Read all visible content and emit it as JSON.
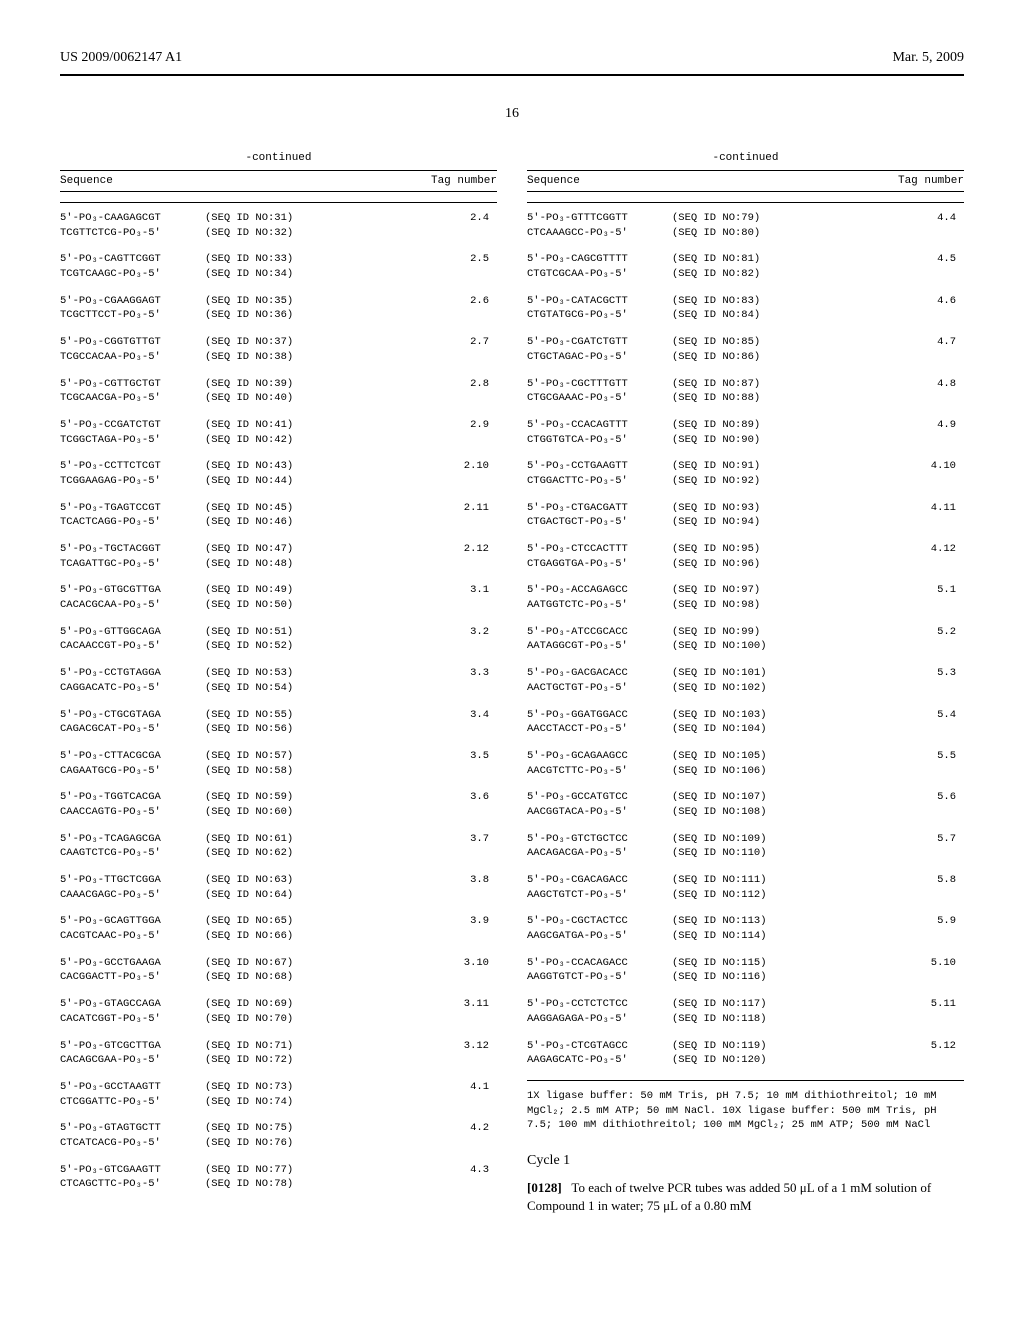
{
  "header": {
    "pub_number": "US 2009/0062147 A1",
    "pub_date": "Mar. 5, 2009"
  },
  "page_number": "16",
  "continued_label": "-continued",
  "table_header": {
    "sequence": "Sequence",
    "tag": "Tag number"
  },
  "left_sequences": [
    {
      "s1": "5'-PO₃-CAAGAGCGT",
      "id1": "(SEQ ID NO:31)",
      "tag": "2.4",
      "s2": "TCGTTCTCG-PO₃-5'",
      "id2": "(SEQ ID NO:32)"
    },
    {
      "s1": "5'-PO₃-CAGTTCGGT",
      "id1": "(SEQ ID NO:33)",
      "tag": "2.5",
      "s2": "TCGTCAAGC-PO₃-5'",
      "id2": "(SEQ ID NO:34)"
    },
    {
      "s1": "5'-PO₃-CGAAGGAGT",
      "id1": "(SEQ ID NO:35)",
      "tag": "2.6",
      "s2": "TCGCTTCCT-PO₃-5'",
      "id2": "(SEQ ID NO:36)"
    },
    {
      "s1": "5'-PO₃-CGGTGTTGT",
      "id1": "(SEQ ID NO:37)",
      "tag": "2.7",
      "s2": "TCGCCACAA-PO₃-5'",
      "id2": "(SEQ ID NO:38)"
    },
    {
      "s1": "5'-PO₃-CGTTGCTGT",
      "id1": "(SEQ ID NO:39)",
      "tag": "2.8",
      "s2": "TCGCAACGA-PO₃-5'",
      "id2": "(SEQ ID NO:40)"
    },
    {
      "s1": "5'-PO₃-CCGATCTGT",
      "id1": "(SEQ ID NO:41)",
      "tag": "2.9",
      "s2": "TCGGCTAGA-PO₃-5'",
      "id2": "(SEQ ID NO:42)"
    },
    {
      "s1": "5'-PO₃-CCTTCTCGT",
      "id1": "(SEQ ID NO:43)",
      "tag": "2.10",
      "s2": "TCGGAAGAG-PO₃-5'",
      "id2": "(SEQ ID NO:44)"
    },
    {
      "s1": "5'-PO₃-TGAGTCCGT",
      "id1": "(SEQ ID NO:45)",
      "tag": "2.11",
      "s2": "TCACTCAGG-PO₃-5'",
      "id2": "(SEQ ID NO:46)"
    },
    {
      "s1": "5'-PO₃-TGCTACGGT",
      "id1": "(SEQ ID NO:47)",
      "tag": "2.12",
      "s2": "TCAGATTGC-PO₃-5'",
      "id2": "(SEQ ID NO:48)"
    },
    {
      "s1": "5'-PO₃-GTGCGTTGA",
      "id1": "(SEQ ID NO:49)",
      "tag": "3.1",
      "s2": "CACACGCAA-PO₃-5'",
      "id2": "(SEQ ID NO:50)"
    },
    {
      "s1": "5'-PO₃-GTTGGCAGA",
      "id1": "(SEQ ID NO:51)",
      "tag": "3.2",
      "s2": "CACAACCGT-PO₃-5'",
      "id2": "(SEQ ID NO:52)"
    },
    {
      "s1": "5'-PO₃-CCTGTAGGA",
      "id1": "(SEQ ID NO:53)",
      "tag": "3.3",
      "s2": "CAGGACATC-PO₃-5'",
      "id2": "(SEQ ID NO:54)"
    },
    {
      "s1": "5'-PO₃-CTGCGTAGA",
      "id1": "(SEQ ID NO:55)",
      "tag": "3.4",
      "s2": "CAGACGCAT-PO₃-5'",
      "id2": "(SEQ ID NO:56)"
    },
    {
      "s1": "5'-PO₃-CTTACGCGA",
      "id1": "(SEQ ID NO:57)",
      "tag": "3.5",
      "s2": "CAGAATGCG-PO₃-5'",
      "id2": "(SEQ ID NO:58)"
    },
    {
      "s1": "5'-PO₃-TGGTCACGA",
      "id1": "(SEQ ID NO:59)",
      "tag": "3.6",
      "s2": "CAACCAGTG-PO₃-5'",
      "id2": "(SEQ ID NO:60)"
    },
    {
      "s1": "5'-PO₃-TCAGAGCGA",
      "id1": "(SEQ ID NO:61)",
      "tag": "3.7",
      "s2": "CAAGTCTCG-PO₃-5'",
      "id2": "(SEQ ID NO:62)"
    },
    {
      "s1": "5'-PO₃-TTGCTCGGA",
      "id1": "(SEQ ID NO:63)",
      "tag": "3.8",
      "s2": "CAAACGAGC-PO₃-5'",
      "id2": "(SEQ ID NO:64)"
    },
    {
      "s1": "5'-PO₃-GCAGTTGGA",
      "id1": "(SEQ ID NO:65)",
      "tag": "3.9",
      "s2": "CACGTCAAC-PO₃-5'",
      "id2": "(SEQ ID NO:66)"
    },
    {
      "s1": "5'-PO₃-GCCTGAAGA",
      "id1": "(SEQ ID NO:67)",
      "tag": "3.10",
      "s2": "CACGGACTT-PO₃-5'",
      "id2": "(SEQ ID NO:68)"
    },
    {
      "s1": "5'-PO₃-GTAGCCAGA",
      "id1": "(SEQ ID NO:69)",
      "tag": "3.11",
      "s2": "CACATCGGT-PO₃-5'",
      "id2": "(SEQ ID NO:70)"
    },
    {
      "s1": "5'-PO₃-GTCGCTTGA",
      "id1": "(SEQ ID NO:71)",
      "tag": "3.12",
      "s2": "CACAGCGAA-PO₃-5'",
      "id2": "(SEQ ID NO:72)"
    },
    {
      "s1": "5'-PO₃-GCCTAAGTT",
      "id1": "(SEQ ID NO:73)",
      "tag": "4.1",
      "s2": "CTCGGATTC-PO₃-5'",
      "id2": "(SEQ ID NO:74)"
    },
    {
      "s1": "5'-PO₃-GTAGTGCTT",
      "id1": "(SEQ ID NO:75)",
      "tag": "4.2",
      "s2": "CTCATCACG-PO₃-5'",
      "id2": "(SEQ ID NO:76)"
    },
    {
      "s1": "5'-PO₃-GTCGAAGTT",
      "id1": "(SEQ ID NO:77)",
      "tag": "4.3",
      "s2": "CTCAGCTTC-PO₃-5'",
      "id2": "(SEQ ID NO:78)"
    }
  ],
  "right_sequences": [
    {
      "s1": "5'-PO₃-GTTTCGGTT",
      "id1": "(SEQ ID NO:79)",
      "tag": "4.4",
      "s2": "CTCAAAGCC-PO₃-5'",
      "id2": "(SEQ ID NO:80)"
    },
    {
      "s1": "5'-PO₃-CAGCGTTTT",
      "id1": "(SEQ ID NO:81)",
      "tag": "4.5",
      "s2": "CTGTCGCAA-PO₃-5'",
      "id2": "(SEQ ID NO:82)"
    },
    {
      "s1": "5'-PO₃-CATACGCTT",
      "id1": "(SEQ ID NO:83)",
      "tag": "4.6",
      "s2": "CTGTATGCG-PO₃-5'",
      "id2": "(SEQ ID NO:84)"
    },
    {
      "s1": "5'-PO₃-CGATCTGTT",
      "id1": "(SEQ ID NO:85)",
      "tag": "4.7",
      "s2": "CTGCTAGAC-PO₃-5'",
      "id2": "(SEQ ID NO:86)"
    },
    {
      "s1": "5'-PO₃-CGCTTTGTT",
      "id1": "(SEQ ID NO:87)",
      "tag": "4.8",
      "s2": "CTGCGAAAC-PO₃-5'",
      "id2": "(SEQ ID NO:88)"
    },
    {
      "s1": "5'-PO₃-CCACAGTTT",
      "id1": "(SEQ ID NO:89)",
      "tag": "4.9",
      "s2": "CTGGTGTCA-PO₃-5'",
      "id2": "(SEQ ID NO:90)"
    },
    {
      "s1": "5'-PO₃-CCTGAAGTT",
      "id1": "(SEQ ID NO:91)",
      "tag": "4.10",
      "s2": "CTGGACTTC-PO₃-5'",
      "id2": "(SEQ ID NO:92)"
    },
    {
      "s1": "5'-PO₃-CTGACGATT",
      "id1": "(SEQ ID NO:93)",
      "tag": "4.11",
      "s2": "CTGACTGCT-PO₃-5'",
      "id2": "(SEQ ID NO:94)"
    },
    {
      "s1": "5'-PO₃-CTCCACTTT",
      "id1": "(SEQ ID NO:95)",
      "tag": "4.12",
      "s2": "CTGAGGTGA-PO₃-5'",
      "id2": "(SEQ ID NO:96)"
    },
    {
      "s1": "5'-PO₃-ACCAGAGCC",
      "id1": "(SEQ ID NO:97)",
      "tag": "5.1",
      "s2": "AATGGTCTC-PO₃-5'",
      "id2": "(SEQ ID NO:98)"
    },
    {
      "s1": "5'-PO₃-ATCCGCACC",
      "id1": "(SEQ ID NO:99)",
      "tag": "5.2",
      "s2": "AATAGGCGT-PO₃-5'",
      "id2": "(SEQ ID NO:100)"
    },
    {
      "s1": "5'-PO₃-GACGACACC",
      "id1": "(SEQ ID NO:101)",
      "tag": "5.3",
      "s2": "AACTGCTGT-PO₃-5'",
      "id2": "(SEQ ID NO:102)"
    },
    {
      "s1": "5'-PO₃-GGATGGACC",
      "id1": "(SEQ ID NO:103)",
      "tag": "5.4",
      "s2": "AACCTACCT-PO₃-5'",
      "id2": "(SEQ ID NO:104)"
    },
    {
      "s1": "5'-PO₃-GCAGAAGCC",
      "id1": "(SEQ ID NO:105)",
      "tag": "5.5",
      "s2": "AACGTCTTC-PO₃-5'",
      "id2": "(SEQ ID NO:106)"
    },
    {
      "s1": "5'-PO₃-GCCATGTCC",
      "id1": "(SEQ ID NO:107)",
      "tag": "5.6",
      "s2": "AACGGTACA-PO₃-5'",
      "id2": "(SEQ ID NO:108)"
    },
    {
      "s1": "5'-PO₃-GTCTGCTCC",
      "id1": "(SEQ ID NO:109)",
      "tag": "5.7",
      "s2": "AACAGACGA-PO₃-5'",
      "id2": "(SEQ ID NO:110)"
    },
    {
      "s1": "5'-PO₃-CGACAGACC",
      "id1": "(SEQ ID NO:111)",
      "tag": "5.8",
      "s2": "AAGCTGTCT-PO₃-5'",
      "id2": "(SEQ ID NO:112)"
    },
    {
      "s1": "5'-PO₃-CGCTACTCC",
      "id1": "(SEQ ID NO:113)",
      "tag": "5.9",
      "s2": "AAGCGATGA-PO₃-5'",
      "id2": "(SEQ ID NO:114)"
    },
    {
      "s1": "5'-PO₃-CCACAGACC",
      "id1": "(SEQ ID NO:115)",
      "tag": "5.10",
      "s2": "AAGGTGTCT-PO₃-5'",
      "id2": "(SEQ ID NO:116)"
    },
    {
      "s1": "5'-PO₃-CCTCTCTCC",
      "id1": "(SEQ ID NO:117)",
      "tag": "5.11",
      "s2": "AAGGAGAGA-PO₃-5'",
      "id2": "(SEQ ID NO:118)"
    },
    {
      "s1": "5'-PO₃-CTCGTAGCC",
      "id1": "(SEQ ID NO:119)",
      "tag": "5.12",
      "s2": "AAGAGCATC-PO₃-5'",
      "id2": "(SEQ ID NO:120)"
    }
  ],
  "buffer_note": "1X ligase buffer: 50 mM Tris, pH 7.5; 10 mM dithiothreitol; 10 mM MgCl₂; 2.5 mM ATP; 50 mM NaCl. 10X ligase buffer: 500 mM Tris, pH 7.5; 100 mM dithiothreitol; 100 mM MgCl₂; 25 mM ATP; 500 mM NaCl",
  "cycle_heading": "Cycle 1",
  "paragraph": {
    "number": "[0128]",
    "text": "To each of twelve PCR tubes was added 50 μL of a 1 mM solution of Compound 1 in water; 75 μL of a 0.80 mM"
  }
}
